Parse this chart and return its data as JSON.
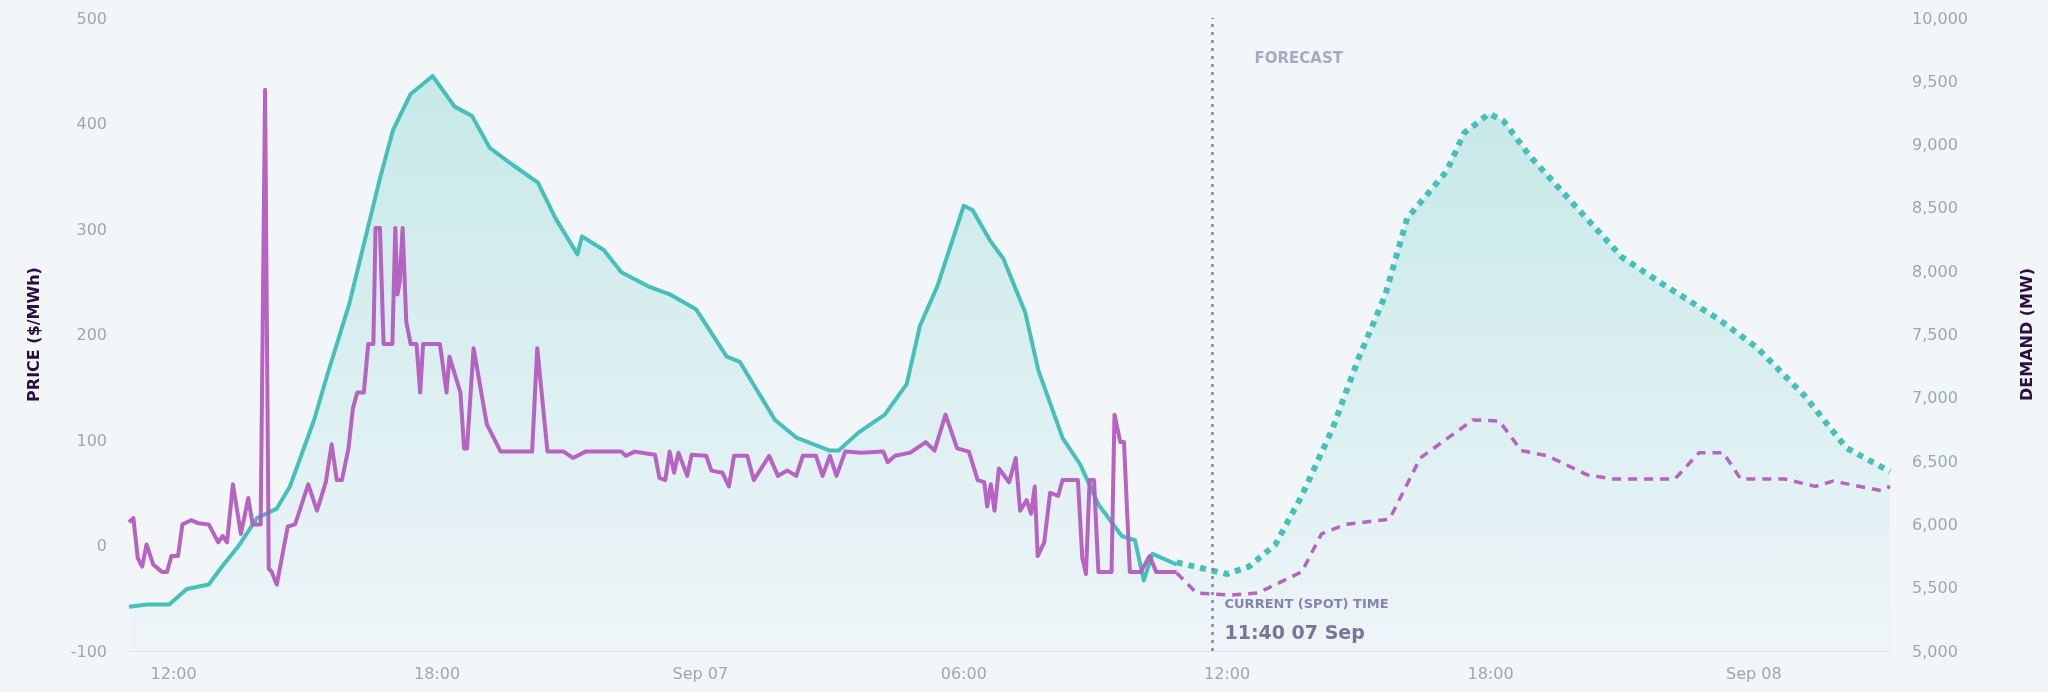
{
  "chart_data": {
    "type": "line",
    "ylabel": "PRICE ($/MWh)",
    "y2label": "DEMAND (MW)",
    "xlim": [
      "--09-06T10:59",
      "--09-08T03:06"
    ],
    "xticks": [
      {
        "value": "--09-06T12:00",
        "label": "12:00"
      },
      {
        "value": "--09-06T18:00",
        "label": "18:00"
      },
      {
        "value": "--09-07T00:00",
        "label": "Sep 07"
      },
      {
        "value": "--09-07T06:00",
        "label": "06:00"
      },
      {
        "value": "--09-07T12:00",
        "label": "12:00"
      },
      {
        "value": "--09-07T18:00",
        "label": "18:00"
      },
      {
        "value": "--09-08T00:00",
        "label": "Sep 08"
      }
    ],
    "ylim": [
      -100,
      500
    ],
    "yticks": [
      -100,
      0,
      100,
      200,
      300,
      400,
      500
    ],
    "y2lim": [
      5000,
      10000
    ],
    "y2ticks": [
      {
        "value": 5000,
        "label": "5,000"
      },
      {
        "value": 5500,
        "label": "5,500"
      },
      {
        "value": 6000,
        "label": "6,000"
      },
      {
        "value": 6500,
        "label": "6,500"
      },
      {
        "value": 7000,
        "label": "7,000"
      },
      {
        "value": 7500,
        "label": "7,500"
      },
      {
        "value": 8000,
        "label": "8,000"
      },
      {
        "value": 8500,
        "label": "8,500"
      },
      {
        "value": 9000,
        "label": "9,000"
      },
      {
        "value": 9500,
        "label": "9,500"
      },
      {
        "value": 10000,
        "label": "10,000"
      }
    ],
    "grid": false,
    "marker": "none",
    "ref_lines": [
      {
        "axis": "x",
        "value": "--09-07T11:40",
        "label": "CURRENT (SPOT) TIME",
        "color": "#8a80b0",
        "line_style": "dotted"
      }
    ],
    "annotations": [
      "FORECAST",
      "11:40 07 Sep"
    ],
    "series": [
      {
        "type": "area",
        "axis": "y2",
        "color": "#3dbdb4",
        "line_style": "solid",
        "x": [
          "--09-06T10:59",
          "--09-06T11:24",
          "--09-06T11:54",
          "--09-06T12:18",
          "--09-06T12:48",
          "--09-06T13:06",
          "--09-06T13:30",
          "--09-06T13:54",
          "--09-06T14:21",
          "--09-06T14:39",
          "--09-06T15:12",
          "--09-06T15:30",
          "--09-06T16:00",
          "--09-06T16:30",
          "--09-06T16:42",
          "--09-06T17:00",
          "--09-06T17:24",
          "--09-06T17:54",
          "--09-06T18:24",
          "--09-06T18:48",
          "--09-06T19:12",
          "--09-06T19:45",
          "--09-06T20:18",
          "--09-06T20:42",
          "--09-06T21:12",
          "--09-06T21:18",
          "--09-06T21:48",
          "--09-06T22:12",
          "--09-06T22:48",
          "--09-06T23:18",
          "--09-06T23:54",
          "--09-07T00:36",
          "--09-07T00:54",
          "--09-07T01:42",
          "--09-07T02:12",
          "--09-07T02:57",
          "--09-07T03:09",
          "--09-07T03:36",
          "--09-07T04:12",
          "--09-07T04:42",
          "--09-07T05:00",
          "--09-07T05:24",
          "--09-07T06:00",
          "--09-07T06:12",
          "--09-07T06:36",
          "--09-07T06:54",
          "--09-07T07:24",
          "--09-07T07:42",
          "--09-07T08:15",
          "--09-07T08:39",
          "--09-07T09:04",
          "--09-07T09:36",
          "--09-07T09:54",
          "--09-07T10:06",
          "--09-07T10:18",
          "--09-07T10:51"
        ],
        "values": [
          5350,
          5367,
          5367,
          5490,
          5525,
          5665,
          5840,
          6050,
          6125,
          6300,
          6825,
          7180,
          7740,
          8450,
          8733,
          9117,
          9400,
          9542,
          9300,
          9225,
          8975,
          8833,
          8700,
          8417,
          8133,
          8275,
          8167,
          7992,
          7883,
          7817,
          7700,
          7325,
          7283,
          6825,
          6683,
          6583,
          6583,
          6725,
          6867,
          7108,
          7567,
          7883,
          8517,
          8483,
          8242,
          8100,
          7675,
          7217,
          6683,
          6475,
          6158,
          5908,
          5875,
          5558,
          5767,
          5683
        ]
      },
      {
        "type": "area",
        "axis": "y2",
        "color": "#3dbdb4",
        "line_style": "dotted",
        "x": [
          "--09-07T10:51",
          "--09-07T12:00",
          "--09-07T12:30",
          "--09-07T13:06",
          "--09-07T13:42",
          "--09-07T14:24",
          "--09-07T15:00",
          "--09-07T15:36",
          "--09-07T16:06",
          "--09-07T17:00",
          "--09-07T17:24",
          "--09-07T17:58",
          "--09-07T18:18",
          "--09-07T18:54",
          "--09-07T20:00",
          "--09-07T21:00",
          "--09-07T21:54",
          "--09-07T23:12",
          "--09-08T00:04",
          "--09-08T01:09",
          "--09-08T02:06",
          "--09-08T03:06"
        ],
        "values": [
          5700,
          5608,
          5667,
          5842,
          6226,
          6756,
          7318,
          7809,
          8418,
          8790,
          9092,
          9245,
          9185,
          8908,
          8489,
          8109,
          7903,
          7619,
          7397,
          7017,
          6606,
          6416
        ]
      },
      {
        "color": "#b35bbf",
        "line_style": "solid",
        "x": [
          "--09-06T10:59",
          "--09-06T11:05",
          "--09-06T11:11",
          "--09-06T11:17",
          "--09-06T11:23",
          "--09-06T11:32",
          "--09-06T11:44",
          "--09-06T11:51",
          "--09-06T11:57",
          "--09-06T12:06",
          "--09-06T12:12",
          "--09-06T12:24",
          "--09-06T12:34",
          "--09-06T12:48",
          "--09-06T13:01",
          "--09-06T13:07",
          "--09-06T13:13",
          "--09-06T13:21",
          "--09-06T13:32",
          "--09-06T13:42",
          "--09-06T13:48",
          "--09-06T13:59",
          "--09-06T14:05",
          "--09-06T14:10",
          "--09-06T14:14",
          "--09-06T14:21",
          "--09-06T14:36",
          "--09-06T14:46",
          "--09-06T15:04",
          "--09-06T15:16",
          "--09-06T15:28",
          "--09-06T15:36",
          "--09-06T15:43",
          "--09-06T15:50",
          "--09-06T15:59",
          "--09-06T16:05",
          "--09-06T16:11",
          "--09-06T16:20",
          "--09-06T16:26",
          "--09-06T16:33",
          "--09-06T16:36",
          "--09-06T16:42",
          "--09-06T16:47",
          "--09-06T16:59",
          "--09-06T17:03",
          "--09-06T17:06",
          "--09-06T17:09",
          "--09-06T17:13",
          "--09-06T17:18",
          "--09-06T17:24",
          "--09-06T17:32",
          "--09-06T17:37",
          "--09-06T17:41",
          "--09-06T18:04",
          "--09-06T18:13",
          "--09-06T18:17",
          "--09-06T18:32",
          "--09-06T18:37",
          "--09-06T18:41",
          "--09-06T18:50",
          "--09-06T19:08",
          "--09-06T19:27",
          "--09-06T20:10",
          "--09-06T20:17",
          "--09-06T20:31",
          "--09-06T20:53",
          "--09-06T21:06",
          "--09-06T21:23",
          "--09-06T22:12",
          "--09-06T22:18",
          "--09-06T22:30",
          "--09-06T22:58",
          "--09-06T23:04",
          "--09-06T23:12",
          "--09-06T23:18",
          "--09-06T23:24",
          "--09-06T23:30",
          "--09-06T23:42",
          "--09-06T23:48",
          "--09-07T00:08",
          "--09-07T00:15",
          "--09-07T00:30",
          "--09-07T00:39",
          "--09-07T00:46",
          "--09-07T01:04",
          "--09-07T01:13",
          "--09-07T01:34",
          "--09-07T01:46",
          "--09-07T01:59",
          "--09-07T02:11",
          "--09-07T02:20",
          "--09-07T02:38",
          "--09-07T02:47",
          "--09-07T02:57",
          "--09-07T03:06",
          "--09-07T03:18",
          "--09-07T03:40",
          "--09-07T04:10",
          "--09-07T04:16",
          "--09-07T04:26",
          "--09-07T04:47",
          "--09-07T05:08",
          "--09-07T05:20",
          "--09-07T05:35",
          "--09-07T05:51",
          "--09-07T06:07",
          "--09-07T06:19",
          "--09-07T06:28",
          "--09-07T06:32",
          "--09-07T06:37",
          "--09-07T06:42",
          "--09-07T06:48",
          "--09-07T07:02",
          "--09-07T07:11",
          "--09-07T07:17",
          "--09-07T07:26",
          "--09-07T07:32",
          "--09-07T07:37",
          "--09-07T07:41",
          "--09-07T07:50",
          "--09-07T07:58",
          "--09-07T08:09",
          "--09-07T08:15",
          "--09-07T08:36",
          "--09-07T08:42",
          "--09-07T08:47",
          "--09-07T08:52",
          "--09-07T08:58",
          "--09-07T09:04",
          "--09-07T09:22",
          "--09-07T09:26",
          "--09-07T09:34",
          "--09-07T09:39",
          "--09-07T09:47",
          "--09-07T10:02",
          "--09-07T10:14",
          "--09-07T10:23",
          "--09-07T10:51"
        ],
        "values": [
          22,
          26,
          -12,
          -20,
          1,
          -18,
          -25,
          -25,
          -10,
          -10,
          20,
          24,
          21,
          20,
          3,
          9,
          3,
          58,
          11,
          45,
          20,
          20,
          432,
          -22,
          -25,
          -37,
          18,
          20,
          58,
          33,
          60,
          96,
          62,
          62,
          92,
          130,
          145,
          145,
          191,
          191,
          301,
          301,
          191,
          191,
          301,
          238,
          250,
          301,
          212,
          191,
          191,
          145,
          191,
          191,
          145,
          179,
          145,
          92,
          92,
          187,
          115,
          89,
          89,
          187,
          89,
          89,
          83,
          89,
          89,
          85,
          89,
          86,
          64,
          62,
          89,
          69,
          88,
          66,
          86,
          85,
          71,
          69,
          56,
          85,
          85,
          62,
          85,
          66,
          71,
          66,
          85,
          85,
          66,
          85,
          66,
          89,
          88,
          89,
          79,
          85,
          88,
          98,
          90,
          124,
          92,
          89,
          62,
          60,
          37,
          58,
          33,
          73,
          60,
          83,
          33,
          43,
          30,
          56,
          -10,
          3,
          50,
          47,
          62,
          62,
          -12,
          -27,
          62,
          62,
          -25,
          -25,
          124,
          98,
          98,
          -25,
          -25,
          -10,
          -25,
          -25
        ]
      },
      {
        "color": "#b35bbf",
        "line_style": "dashed",
        "x": [
          "--09-07T10:51",
          "--09-07T11:18",
          "--09-07T12:06",
          "--09-07T12:42",
          "--09-07T13:21",
          "--09-07T13:42",
          "--09-07T14:09",
          "--09-07T14:42",
          "--09-07T15:42",
          "--09-07T16:24",
          "--09-07T17:00",
          "--09-07T17:36",
          "--09-07T18:12",
          "--09-07T18:42",
          "--09-07T19:18",
          "--09-07T20:12",
          "--09-07T20:48",
          "--09-07T22:12",
          "--09-07T22:45",
          "--09-07T23:18",
          "--09-07T23:42",
          "--09-08T00:42",
          "--09-08T01:24",
          "--09-08T01:48",
          "--09-08T02:54",
          "--09-08T03:06"
        ],
        "values": [
          -26,
          -45,
          -47,
          -45,
          -32,
          -25,
          11,
          20,
          25,
          83,
          101,
          119,
          118,
          90,
          85,
          67,
          63,
          63,
          88,
          88,
          63,
          63,
          56,
          61,
          52,
          56
        ]
      }
    ]
  }
}
